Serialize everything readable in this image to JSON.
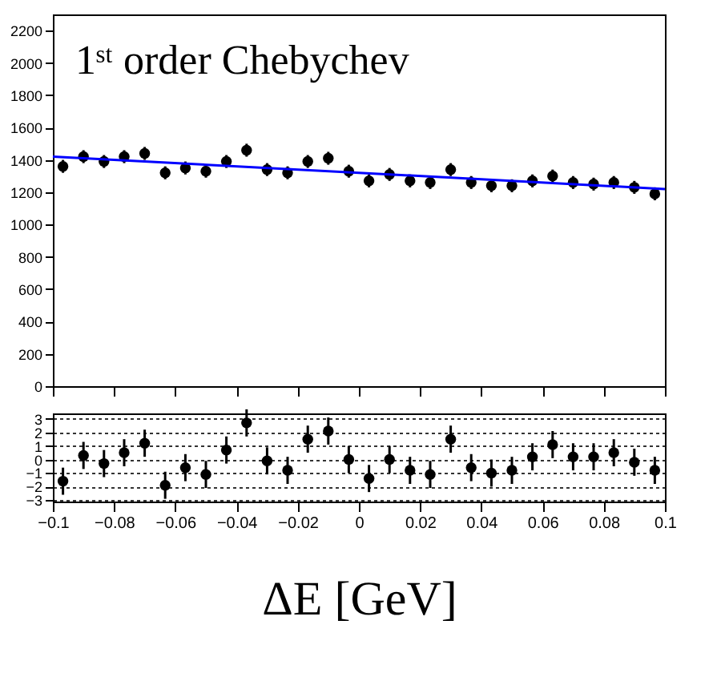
{
  "chart_data": [
    {
      "type": "scatter",
      "annotations": [
        "1ˢᵗ order Chebychev"
      ],
      "x": [
        -0.0967,
        -0.09,
        -0.0833,
        -0.0767,
        -0.07,
        -0.0633,
        -0.0567,
        -0.05,
        -0.0433,
        -0.0367,
        -0.03,
        -0.0233,
        -0.0167,
        -0.01,
        -0.0033,
        0.0033,
        0.01,
        0.0167,
        0.0233,
        0.03,
        0.0367,
        0.0433,
        0.05,
        0.0567,
        0.0633,
        0.07,
        0.0767,
        0.0833,
        0.09,
        0.0967
      ],
      "series": [
        {
          "color": "#000000",
          "marker": "circle",
          "values": [
            1360,
            1420,
            1390,
            1420,
            1440,
            1320,
            1350,
            1330,
            1390,
            1460,
            1340,
            1320,
            1390,
            1410,
            1330,
            1270,
            1310,
            1270,
            1260,
            1340,
            1260,
            1240,
            1240,
            1270,
            1300,
            1260,
            1250,
            1260,
            1230,
            1190
          ],
          "errors": [
            40,
            40,
            40,
            40,
            40,
            40,
            40,
            40,
            40,
            40,
            40,
            40,
            40,
            40,
            40,
            40,
            40,
            40,
            40,
            40,
            40,
            40,
            40,
            40,
            40,
            40,
            40,
            40,
            40,
            40
          ]
        },
        {
          "type": "line",
          "color": "#0000ff",
          "line_style": "solid",
          "x": [
            -0.1,
            0.1
          ],
          "values": [
            1420,
            1220
          ]
        }
      ],
      "xlim": [
        -0.1,
        0.1
      ],
      "xticks": [
        -0.1,
        -0.08,
        -0.06,
        -0.04,
        -0.02,
        0,
        0.02,
        0.04,
        0.06,
        0.08,
        0.1
      ],
      "ylim": [
        0,
        2300
      ],
      "yticks": [
        0,
        200,
        400,
        600,
        800,
        1000,
        1200,
        1400,
        1600,
        1800,
        2000,
        2200
      ],
      "tick_labels": "y",
      "grid": false
    },
    {
      "type": "scatter",
      "xlabel": "ΔE [GeV]",
      "x": [
        -0.0967,
        -0.09,
        -0.0833,
        -0.0767,
        -0.07,
        -0.0633,
        -0.0567,
        -0.05,
        -0.0433,
        -0.0367,
        -0.03,
        -0.0233,
        -0.0167,
        -0.01,
        -0.0033,
        0.0033,
        0.01,
        0.0167,
        0.0233,
        0.03,
        0.0367,
        0.0433,
        0.05,
        0.0567,
        0.0633,
        0.07,
        0.0767,
        0.0833,
        0.09,
        0.0967
      ],
      "series": [
        {
          "color": "#000000",
          "marker": "circle",
          "values": [
            -1.6,
            0.3,
            -0.3,
            0.5,
            1.2,
            -1.9,
            -0.6,
            -1.1,
            0.7,
            2.7,
            -0.1,
            -0.8,
            1.5,
            2.1,
            0.0,
            -1.4,
            0.0,
            -0.8,
            -1.1,
            1.5,
            -0.6,
            -1.0,
            -0.8,
            0.2,
            1.1,
            0.2,
            0.2,
            0.5,
            -0.2,
            -0.8
          ],
          "errors": [
            1,
            1,
            1,
            1,
            1,
            1,
            1,
            1,
            1,
            1,
            1,
            1,
            1,
            1,
            1,
            1,
            1,
            1,
            1,
            1,
            1,
            1,
            1,
            1,
            1,
            1,
            1,
            1,
            1,
            1
          ]
        }
      ],
      "xlim": [
        -0.1,
        0.1
      ],
      "xticks": [
        {
          "value": -0.1,
          "label": "−0.1"
        },
        {
          "value": -0.08,
          "label": "−0.08"
        },
        {
          "value": -0.06,
          "label": "−0.06"
        },
        {
          "value": -0.04,
          "label": "−0.04"
        },
        {
          "value": -0.02,
          "label": "−0.02"
        },
        0,
        0.02,
        0.04,
        0.06,
        0.08,
        0.1
      ],
      "ylim": [
        -3.1,
        3.4
      ],
      "yticks": [
        {
          "value": -3,
          "label": "−3"
        },
        {
          "value": -2,
          "label": "−2"
        },
        {
          "value": -1,
          "label": "−1"
        },
        0,
        1,
        2,
        3
      ],
      "grid": "y"
    }
  ]
}
